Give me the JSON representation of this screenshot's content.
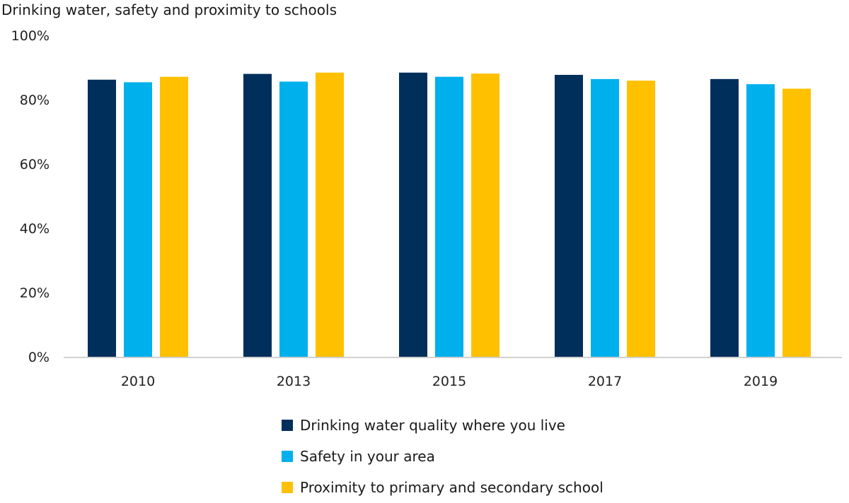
{
  "chart_data": {
    "type": "bar",
    "title": "Drinking water, safety and proximity to schools",
    "xlabel": "",
    "ylabel": "",
    "ylim": [
      0,
      100
    ],
    "yticks": [
      0,
      20,
      40,
      60,
      80,
      100
    ],
    "ytick_labels": [
      "0%",
      "20%",
      "40%",
      "60%",
      "80%",
      "100%"
    ],
    "grid": false,
    "legend_position": "bottom-center",
    "categories": [
      "2010",
      "2013",
      "2015",
      "2017",
      "2019"
    ],
    "series": [
      {
        "name": "Drinking water quality where you live",
        "color": "#002f5c",
        "values": [
          86.2,
          88.0,
          88.4,
          87.7,
          86.4
        ]
      },
      {
        "name": "Safety in your area",
        "color": "#00b0ed",
        "values": [
          85.4,
          85.6,
          87.1,
          86.4,
          84.8
        ]
      },
      {
        "name": "Proximity to primary and secondary school",
        "color": "#ffc000",
        "values": [
          87.1,
          88.4,
          88.1,
          85.9,
          83.4
        ]
      }
    ]
  }
}
